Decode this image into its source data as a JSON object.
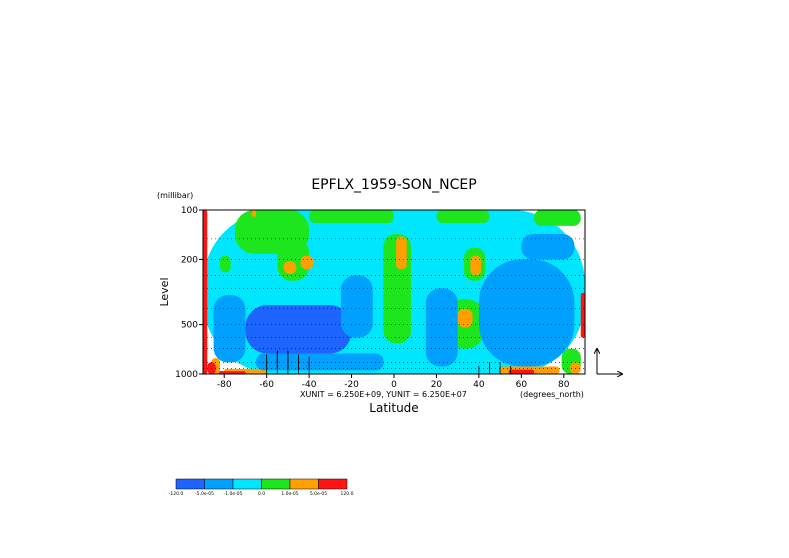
{
  "chart_data": {
    "type": "heatmap",
    "title": "EPFLX_1959-SON_NCEP",
    "xlabel": "Latitude",
    "ylabel": "Level",
    "y_unit_label": "(millibar)",
    "x_unit_label": "(degrees_north)",
    "vector_scale_text": "XUNIT = 6.250E+09, YUNIT = 6.250E+07",
    "x_range": [
      -90,
      90
    ],
    "y_range": [
      1000,
      100
    ],
    "y_scale": "log",
    "x_ticks": [
      -80,
      -60,
      -40,
      -20,
      0,
      20,
      40,
      60,
      80
    ],
    "x_tick_labels": [
      "-80",
      "-60",
      "-40",
      "-20",
      "0",
      "20",
      "40",
      "60",
      "80"
    ],
    "y_ticks": [
      100,
      200,
      500,
      1000
    ],
    "y_tick_labels": [
      "100",
      "200",
      "500",
      "1000"
    ],
    "grid": "dotted horizontal lines at pressure levels",
    "colorbar": {
      "levels": [
        -120.0,
        -5e-05,
        -1e-05,
        0.0,
        1e-05,
        5e-05,
        120.0
      ],
      "level_labels": [
        "-120.0",
        "-5.0e-05",
        "-1.0e-05",
        "0.0",
        "1.0e-05",
        "5.0e-05",
        "120.0"
      ],
      "colors": [
        "#1e64ff",
        "#00a0ff",
        "#00e6ff",
        "#1ee61e",
        "#ffa000",
        "#ff1414"
      ]
    },
    "regions": [
      {
        "level": 2,
        "lat": [
          -90,
          90
        ],
        "p": [
          100,
          1000
        ],
        "note": "background"
      },
      {
        "level": 3,
        "lat": [
          -75,
          -40
        ],
        "p": [
          100,
          185
        ]
      },
      {
        "level": 4,
        "lat": [
          -67,
          -65
        ],
        "p": [
          100,
          110
        ]
      },
      {
        "level": 3,
        "lat": [
          -55,
          -40
        ],
        "p": [
          150,
          270
        ]
      },
      {
        "level": 4,
        "lat": [
          -52,
          -46
        ],
        "p": [
          205,
          245
        ]
      },
      {
        "level": 4,
        "lat": [
          -44,
          -38
        ],
        "p": [
          190,
          230
        ]
      },
      {
        "level": 3,
        "lat": [
          -82,
          -77
        ],
        "p": [
          190,
          240
        ]
      },
      {
        "level": 3,
        "lat": [
          -40,
          0
        ],
        "p": [
          100,
          120
        ]
      },
      {
        "level": 3,
        "lat": [
          -5,
          8
        ],
        "p": [
          140,
          650
        ]
      },
      {
        "level": 4,
        "lat": [
          1,
          6
        ],
        "p": [
          145,
          230
        ]
      },
      {
        "level": 3,
        "lat": [
          20,
          45
        ],
        "p": [
          100,
          120
        ]
      },
      {
        "level": 3,
        "lat": [
          33,
          43
        ],
        "p": [
          170,
          270
        ]
      },
      {
        "level": 4,
        "lat": [
          36,
          41
        ],
        "p": [
          190,
          250
        ]
      },
      {
        "level": 3,
        "lat": [
          25,
          42
        ],
        "p": [
          350,
          700
        ]
      },
      {
        "level": 4,
        "lat": [
          30,
          37
        ],
        "p": [
          400,
          520
        ]
      },
      {
        "level": 3,
        "lat": [
          66,
          88
        ],
        "p": [
          100,
          125
        ]
      },
      {
        "level": 3,
        "lat": [
          79,
          88
        ],
        "p": [
          700,
          1000
        ]
      },
      {
        "level": 4,
        "lat": [
          83,
          88
        ],
        "p": [
          850,
          1000
        ]
      },
      {
        "level": 5,
        "lat": [
          -90,
          -88
        ],
        "p": [
          100,
          1000
        ]
      },
      {
        "level": 5,
        "lat": [
          88,
          90
        ],
        "p": [
          320,
          600
        ]
      },
      {
        "level": 4,
        "lat": [
          50,
          78
        ],
        "p": [
          900,
          1000
        ]
      },
      {
        "level": 5,
        "lat": [
          54,
          66
        ],
        "p": [
          940,
          1000
        ]
      },
      {
        "level": 4,
        "lat": [
          -80,
          -60
        ],
        "p": [
          930,
          1000
        ]
      },
      {
        "level": 5,
        "lat": [
          -85,
          -70
        ],
        "p": [
          960,
          1000
        ]
      },
      {
        "level": 4,
        "lat": [
          -86,
          -82
        ],
        "p": [
          800,
          1000
        ]
      },
      {
        "level": 5,
        "lat": [
          -88,
          -84
        ],
        "p": [
          850,
          1000
        ]
      },
      {
        "level": 0,
        "lat": [
          -70,
          -20
        ],
        "p": [
          380,
          750
        ]
      },
      {
        "level": 1,
        "lat": [
          -85,
          -70
        ],
        "p": [
          330,
          850
        ]
      },
      {
        "level": 0,
        "lat": [
          45,
          80
        ],
        "p": [
          270,
          650
        ]
      },
      {
        "level": 1,
        "lat": [
          -25,
          -10
        ],
        "p": [
          250,
          600
        ]
      },
      {
        "level": 1,
        "lat": [
          15,
          30
        ],
        "p": [
          300,
          900
        ]
      },
      {
        "level": 1,
        "lat": [
          40,
          85
        ],
        "p": [
          200,
          900
        ]
      },
      {
        "level": 1,
        "lat": [
          -65,
          -5
        ],
        "p": [
          750,
          950
        ]
      },
      {
        "level": 1,
        "lat": [
          60,
          85
        ],
        "p": [
          140,
          200
        ]
      }
    ],
    "vectors": [
      {
        "lat": -60,
        "p": 1000,
        "dx": 0,
        "dy": -3
      },
      {
        "lat": -55,
        "p": 1000,
        "dx": 0,
        "dy": -4
      },
      {
        "lat": -50,
        "p": 1000,
        "dx": 0,
        "dy": -4
      },
      {
        "lat": -45,
        "p": 1000,
        "dx": 0,
        "dy": -3
      },
      {
        "lat": -40,
        "p": 1000,
        "dx": 0,
        "dy": -3
      },
      {
        "lat": -60,
        "p": 925,
        "dx": 0,
        "dy": -3
      },
      {
        "lat": -55,
        "p": 925,
        "dx": 0,
        "dy": -4
      },
      {
        "lat": -50,
        "p": 925,
        "dx": 0,
        "dy": -4
      },
      {
        "lat": -45,
        "p": 925,
        "dx": 0,
        "dy": -3
      },
      {
        "lat": -40,
        "p": 925,
        "dx": 0,
        "dy": -3
      },
      {
        "lat": -60,
        "p": 850,
        "dx": 0,
        "dy": -2
      },
      {
        "lat": -55,
        "p": 850,
        "dx": 0,
        "dy": -3
      },
      {
        "lat": -50,
        "p": 850,
        "dx": 0,
        "dy": -3
      },
      {
        "lat": -45,
        "p": 850,
        "dx": 0,
        "dy": -2
      },
      {
        "lat": 40,
        "p": 1000,
        "dx": 0,
        "dy": -2
      },
      {
        "lat": 45,
        "p": 1000,
        "dx": 0,
        "dy": -3
      },
      {
        "lat": 50,
        "p": 1000,
        "dx": 0,
        "dy": -3
      },
      {
        "lat": 55,
        "p": 1000,
        "dx": 0,
        "dy": -2
      }
    ]
  }
}
